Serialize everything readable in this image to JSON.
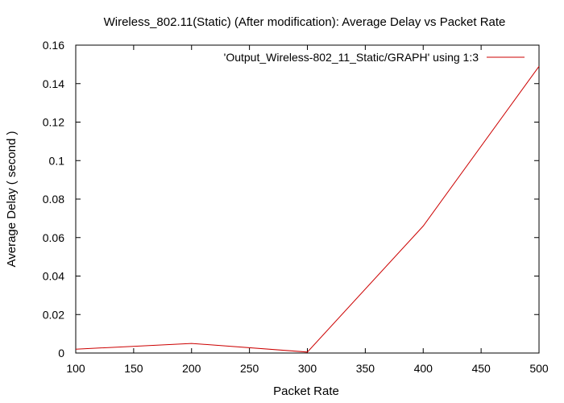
{
  "chart_data": {
    "type": "line",
    "title": "Wireless_802.11(Static) (After modification): Average Delay vs Packet Rate",
    "xlabel": "Packet Rate",
    "ylabel": "Average Delay ( second )",
    "xlim": [
      100,
      500
    ],
    "ylim": [
      0,
      0.16
    ],
    "xticks": [
      "100",
      "150",
      "200",
      "250",
      "300",
      "350",
      "400",
      "450",
      "500"
    ],
    "yticks": [
      "0",
      "0.02",
      "0.04",
      "0.06",
      "0.08",
      "0.1",
      "0.12",
      "0.14",
      "0.16"
    ],
    "grid": false,
    "legend_position": "top-right",
    "series": [
      {
        "name": "'Output_Wireless-802_11_Static/GRAPH' using 1:3",
        "color": "#cc0000",
        "x": [
          100,
          200,
          300,
          400,
          500
        ],
        "y": [
          0.002,
          0.005,
          0.0005,
          0.066,
          0.149
        ]
      }
    ]
  }
}
